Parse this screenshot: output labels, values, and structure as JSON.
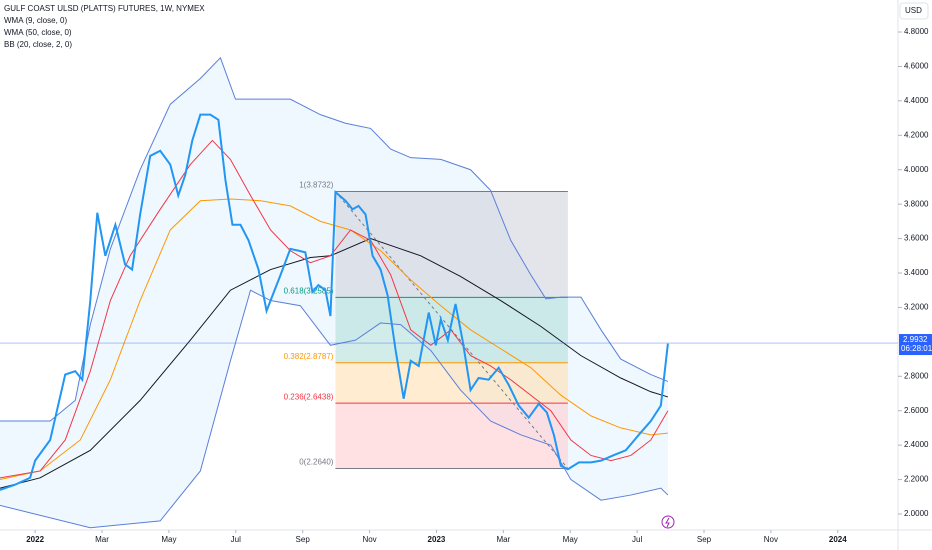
{
  "chart_data": {
    "type": "line",
    "title": "GULF COAST ULSD (PLATTS) FUTURES, 1W, NYMEX",
    "currency": "USD",
    "xlim": [
      -1.05,
      25.8
    ],
    "xticks": [
      {
        "value": 0,
        "label": "2022"
      },
      {
        "value": 2,
        "label": "Mar"
      },
      {
        "value": 4,
        "label": "May"
      },
      {
        "value": 6,
        "label": "Jul"
      },
      {
        "value": 8,
        "label": "Sep"
      },
      {
        "value": 10,
        "label": "Nov"
      },
      {
        "value": 12,
        "label": "2023"
      },
      {
        "value": 14,
        "label": "Mar"
      },
      {
        "value": 16,
        "label": "May"
      },
      {
        "value": 18,
        "label": "Jul"
      },
      {
        "value": 20,
        "label": "Sep"
      },
      {
        "value": 22,
        "label": "Nov"
      },
      {
        "value": 24,
        "label": "2024"
      }
    ],
    "ylim": [
      1.907,
      4.986
    ],
    "yticks": [
      {
        "value": 2.0,
        "label": "2.0000"
      },
      {
        "value": 2.2,
        "label": "2.2000"
      },
      {
        "value": 2.4,
        "label": "2.4000"
      },
      {
        "value": 2.6,
        "label": "2.6000"
      },
      {
        "value": 2.8,
        "label": "2.8000"
      },
      {
        "value": 3.2,
        "label": "3.2000"
      },
      {
        "value": 3.4,
        "label": "3.4000"
      },
      {
        "value": 3.6,
        "label": "3.6000"
      },
      {
        "value": 3.8,
        "label": "3.8000"
      },
      {
        "value": 4.0,
        "label": "4.0000"
      },
      {
        "value": 4.2,
        "label": "4.2000"
      },
      {
        "value": 4.4,
        "label": "4.4000"
      },
      {
        "value": 4.6,
        "label": "4.6000"
      },
      {
        "value": 4.8,
        "label": "4.8000"
      }
    ],
    "color": "#2196f3",
    "x": [
      -1.05,
      -0.6,
      -0.15,
      0,
      0.45,
      0.9,
      1.2,
      1.41,
      1.65,
      1.86,
      2.1,
      2.4,
      2.69,
      2.9,
      3.14,
      3.44,
      3.74,
      4.04,
      4.28,
      4.49,
      4.7,
      4.94,
      5.24,
      5.48,
      5.69,
      5.9,
      6.14,
      6.38,
      6.68,
      6.92,
      7.1,
      7.34,
      7.63,
      7.87,
      8.08,
      8.29,
      8.47,
      8.68,
      8.83,
      8.98,
      9.28,
      9.49,
      9.67,
      9.88,
      10.09,
      10.33,
      10.54,
      10.78,
      11.02,
      11.23,
      11.47,
      11.77,
      11.98,
      12.13,
      12.34,
      12.57,
      12.78,
      13.02,
      13.26,
      13.56,
      13.86,
      14.16,
      14.46,
      14.76,
      15.06,
      15.3,
      15.51,
      15.72,
      15.93,
      16.26,
      16.62,
      16.92,
      17.28,
      17.66,
      18.05,
      18.41,
      18.71,
      18.92
    ],
    "values": [
      2.14,
      2.17,
      2.21,
      2.31,
      2.43,
      2.81,
      2.83,
      2.78,
      3.24,
      3.75,
      3.5,
      3.68,
      3.45,
      3.42,
      3.74,
      4.08,
      4.11,
      4.03,
      3.85,
      3.97,
      4.17,
      4.32,
      4.32,
      4.29,
      3.94,
      3.68,
      3.68,
      3.59,
      3.42,
      3.18,
      3.27,
      3.39,
      3.54,
      3.53,
      3.52,
      3.29,
      3.33,
      3.3,
      3.15,
      3.87,
      3.82,
      3.77,
      3.79,
      3.74,
      3.5,
      3.42,
      3.27,
      2.95,
      2.67,
      2.89,
      2.86,
      3.17,
      2.98,
      3.13,
      3.01,
      3.22,
      3.01,
      2.72,
      2.79,
      2.78,
      2.85,
      2.75,
      2.63,
      2.56,
      2.64,
      2.59,
      2.46,
      2.28,
      2.26,
      2.3,
      2.3,
      2.31,
      2.34,
      2.37,
      2.46,
      2.54,
      2.63,
      2.99
    ],
    "last_price": {
      "value": 2.9932,
      "label": "2.9932"
    },
    "countdown": "06:28:01",
    "series": [
      {
        "name": "WMA (9, close, 0)",
        "color": "#f23645",
        "x": [
          -1.05,
          0.15,
          0.9,
          1.65,
          2.25,
          2.84,
          3.74,
          4.64,
          5.3,
          5.84,
          6.44,
          7.04,
          7.63,
          8.23,
          8.83,
          9.43,
          10.03,
          10.63,
          11.23,
          11.83,
          12.43,
          13.02,
          13.62,
          14.22,
          14.82,
          15.42,
          16.02,
          16.62,
          17.22,
          17.81,
          18.41,
          18.92
        ],
        "values": [
          2.21,
          2.25,
          2.43,
          2.83,
          3.24,
          3.5,
          3.77,
          4.03,
          4.17,
          4.06,
          3.85,
          3.65,
          3.53,
          3.46,
          3.5,
          3.65,
          3.59,
          3.39,
          3.07,
          2.98,
          3.07,
          2.92,
          2.86,
          2.78,
          2.69,
          2.6,
          2.43,
          2.34,
          2.31,
          2.34,
          2.43,
          2.6
        ]
      },
      {
        "name": "WMA (50, close, 0)",
        "color": "#ff9800",
        "x": [
          -1.05,
          0.15,
          1.35,
          2.25,
          3.14,
          4.04,
          4.94,
          5.84,
          6.74,
          7.63,
          8.53,
          9.43,
          10.33,
          11.23,
          12.13,
          13.02,
          13.92,
          14.82,
          15.72,
          16.62,
          17.51,
          18.41,
          18.92
        ],
        "values": [
          2.2,
          2.25,
          2.43,
          2.78,
          3.24,
          3.65,
          3.82,
          3.83,
          3.82,
          3.79,
          3.7,
          3.65,
          3.53,
          3.36,
          3.21,
          3.07,
          2.96,
          2.85,
          2.69,
          2.57,
          2.5,
          2.46,
          2.47
        ]
      },
      {
        "name": "BB (20, close, 2, 0)",
        "color": "#5b7fd9",
        "basis": {
          "color": "#131722",
          "x": [
            -1.05,
            0.15,
            1.65,
            3.14,
            4.64,
            5.84,
            7.04,
            8.23,
            8.83,
            10.03,
            10.63,
            11.53,
            12.72,
            13.92,
            15.12,
            16.32,
            17.51,
            18.41,
            18.92
          ],
          "values": [
            2.15,
            2.21,
            2.37,
            2.66,
            3.01,
            3.3,
            3.42,
            3.49,
            3.5,
            3.6,
            3.56,
            3.5,
            3.38,
            3.24,
            3.09,
            2.92,
            2.79,
            2.71,
            2.68
          ]
        },
        "upper": {
          "x": [
            -1.05,
            0.45,
            1.2,
            1.65,
            2.25,
            3.14,
            4.04,
            4.94,
            5.54,
            5.99,
            6.74,
            7.63,
            8.53,
            9.28,
            10.03,
            10.63,
            11.23,
            12.13,
            13.02,
            13.62,
            14.22,
            14.82,
            15.27,
            15.72,
            16.32,
            16.92,
            17.51,
            18.41,
            18.92
          ],
          "values": [
            2.54,
            2.54,
            2.66,
            3.1,
            3.54,
            4.0,
            4.38,
            4.53,
            4.65,
            4.41,
            4.41,
            4.41,
            4.32,
            4.27,
            4.24,
            4.12,
            4.07,
            4.06,
            4.0,
            3.88,
            3.59,
            3.39,
            3.25,
            3.26,
            3.26,
            3.07,
            2.9,
            2.81,
            2.77
          ]
        },
        "lower": {
          "x": [
            -1.05,
            1.65,
            3.74,
            4.94,
            5.84,
            6.44,
            7.04,
            7.93,
            8.83,
            9.58,
            10.33,
            10.93,
            11.83,
            12.72,
            13.62,
            14.52,
            15.42,
            16.02,
            16.92,
            17.81,
            18.71,
            18.92
          ],
          "values": [
            2.05,
            1.92,
            1.96,
            2.25,
            2.89,
            3.3,
            3.24,
            3.21,
            2.98,
            3.01,
            3.11,
            3.1,
            2.95,
            2.72,
            2.54,
            2.46,
            2.4,
            2.2,
            2.08,
            2.11,
            2.15,
            2.11
          ]
        }
      }
    ],
    "fib": {
      "x": [
        8.98,
        15.93
      ],
      "levels": [
        {
          "price": 3.8732,
          "label": "1(3.8732)",
          "color": "#787b86",
          "fill": "#d1d4dc"
        },
        {
          "price": 3.2585,
          "label": "0.618(3.2585)",
          "color": "#089981",
          "fill": "#b2dfdb"
        },
        {
          "price": 2.8787,
          "label": "0.382(2.8787)",
          "color": "#ff9800",
          "fill": "#ffe0b2"
        },
        {
          "price": 2.6438,
          "label": "0.236(2.6438)",
          "color": "#f23645",
          "fill": "#ffcdd2"
        },
        {
          "price": 2.264,
          "label": "0(2.2640)",
          "color": "#787b86",
          "fill": null
        }
      ]
    }
  }
}
